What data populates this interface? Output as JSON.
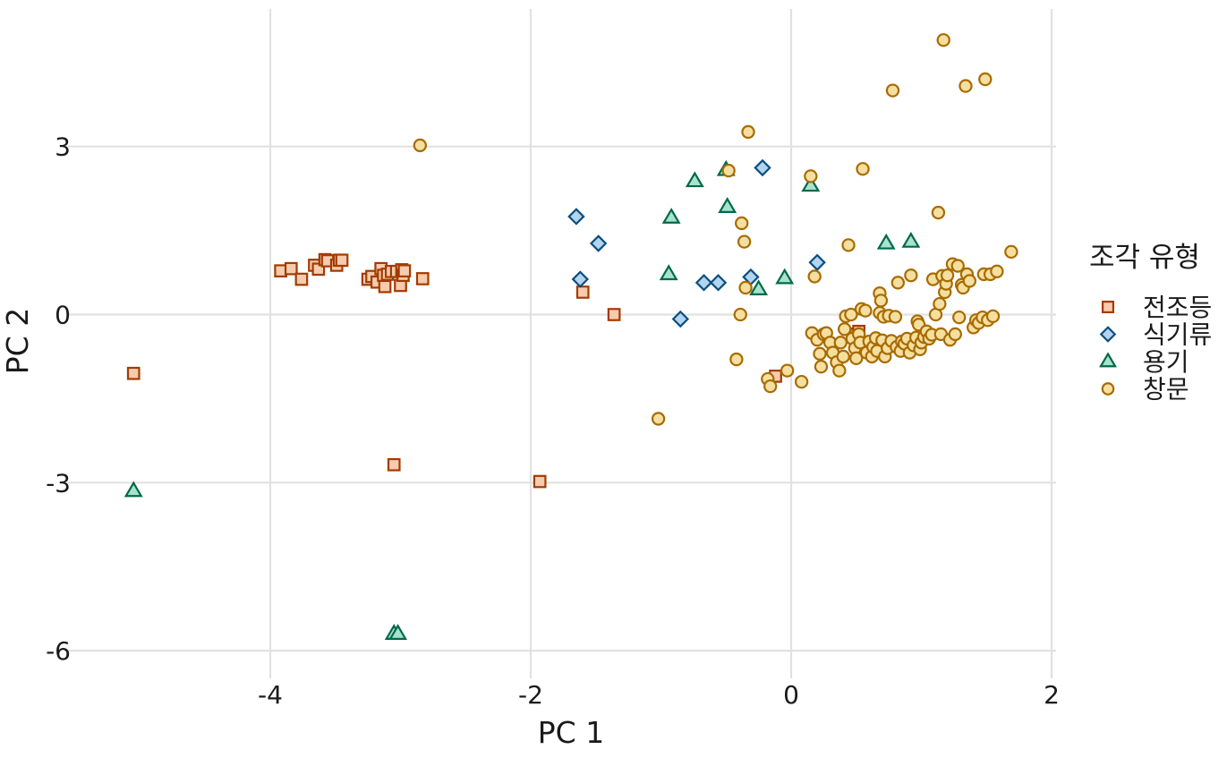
{
  "chart_data": {
    "type": "scatter",
    "title": "",
    "xlabel": "PC 1",
    "ylabel": "PC 2",
    "xlim": [
      -5.3,
      2.05
    ],
    "ylim": [
      -6.5,
      5.45
    ],
    "x_ticks": [
      -4,
      -2,
      0,
      2
    ],
    "y_ticks": [
      -6,
      -3,
      0,
      3
    ],
    "grid": true,
    "legend": {
      "title": "조각 유형",
      "placement": "right"
    },
    "series": [
      {
        "name": "전조등",
        "marker": "square",
        "stroke": "#A33B00",
        "fill": "#F6CBAF",
        "points": [
          [
            -5.05,
            -1.05
          ],
          [
            -3.92,
            0.78
          ],
          [
            -3.84,
            0.82
          ],
          [
            -3.76,
            0.63
          ],
          [
            -3.66,
            0.88
          ],
          [
            -3.63,
            0.81
          ],
          [
            -3.58,
            0.98
          ],
          [
            -3.56,
            0.96
          ],
          [
            -3.49,
            0.88
          ],
          [
            -3.47,
            0.97
          ],
          [
            -3.45,
            0.97
          ],
          [
            -3.25,
            0.63
          ],
          [
            -3.22,
            0.68
          ],
          [
            -3.18,
            0.58
          ],
          [
            -3.15,
            0.82
          ],
          [
            -3.13,
            0.7
          ],
          [
            -3.12,
            0.5
          ],
          [
            -3.1,
            0.72
          ],
          [
            -3.07,
            0.77
          ],
          [
            -3.03,
            0.77
          ],
          [
            -3.0,
            0.52
          ],
          [
            -2.99,
            0.8
          ],
          [
            -2.98,
            0.7
          ],
          [
            -2.97,
            0.78
          ],
          [
            -2.83,
            0.64
          ],
          [
            -3.05,
            -2.68
          ],
          [
            -1.93,
            -2.98
          ],
          [
            -1.6,
            0.4
          ],
          [
            -1.36,
            0.0
          ],
          [
            -0.12,
            -1.1
          ],
          [
            0.5,
            -0.35
          ],
          [
            0.52,
            -0.3
          ]
        ]
      },
      {
        "name": "식기류",
        "marker": "diamond",
        "stroke": "#0B4E7E",
        "fill": "#B3D4EE",
        "points": [
          [
            -1.65,
            1.75
          ],
          [
            -1.62,
            0.63
          ],
          [
            -1.48,
            1.27
          ],
          [
            -0.85,
            -0.08
          ],
          [
            -0.67,
            0.57
          ],
          [
            -0.56,
            0.57
          ],
          [
            -0.31,
            0.67
          ],
          [
            -0.22,
            2.62
          ],
          [
            0.2,
            0.93
          ]
        ]
      },
      {
        "name": "용기",
        "marker": "triangle",
        "stroke": "#00694A",
        "fill": "#A8E2CC",
        "points": [
          [
            -5.05,
            -3.15
          ],
          [
            -3.05,
            -5.7
          ],
          [
            -3.02,
            -5.7
          ],
          [
            -0.94,
            0.72
          ],
          [
            -0.92,
            1.73
          ],
          [
            -0.74,
            2.38
          ],
          [
            -0.5,
            2.58
          ],
          [
            -0.49,
            1.92
          ],
          [
            -0.25,
            0.45
          ],
          [
            -0.05,
            0.65
          ],
          [
            0.15,
            2.3
          ],
          [
            0.73,
            1.27
          ],
          [
            0.92,
            1.3
          ]
        ]
      },
      {
        "name": "창문",
        "marker": "circle",
        "stroke": "#A86B00",
        "fill": "#F5DFA0",
        "points": [
          [
            -2.85,
            3.02
          ],
          [
            -1.02,
            -1.86
          ],
          [
            -0.48,
            2.57
          ],
          [
            -0.42,
            -0.8
          ],
          [
            -0.39,
            0.0
          ],
          [
            -0.38,
            1.63
          ],
          [
            -0.36,
            1.3
          ],
          [
            -0.35,
            0.48
          ],
          [
            -0.33,
            3.26
          ],
          [
            -0.18,
            -1.15
          ],
          [
            -0.16,
            -1.28
          ],
          [
            -0.03,
            -1.0
          ],
          [
            0.08,
            -1.2
          ],
          [
            0.15,
            2.47
          ],
          [
            0.16,
            -0.33
          ],
          [
            0.18,
            0.68
          ],
          [
            0.2,
            -0.45
          ],
          [
            0.22,
            -0.7
          ],
          [
            0.23,
            -0.93
          ],
          [
            0.25,
            -0.35
          ],
          [
            0.27,
            -0.33
          ],
          [
            0.3,
            -0.5
          ],
          [
            0.32,
            -0.68
          ],
          [
            0.35,
            -0.85
          ],
          [
            0.37,
            -1.0
          ],
          [
            0.38,
            -0.5
          ],
          [
            0.4,
            -0.75
          ],
          [
            0.41,
            -0.26
          ],
          [
            0.42,
            -0.03
          ],
          [
            0.44,
            1.24
          ],
          [
            0.46,
            0.0
          ],
          [
            0.47,
            -0.43
          ],
          [
            0.49,
            -0.6
          ],
          [
            0.5,
            -0.78
          ],
          [
            0.52,
            -0.35
          ],
          [
            0.53,
            -0.5
          ],
          [
            0.54,
            0.1
          ],
          [
            0.55,
            2.6
          ],
          [
            0.57,
            0.07
          ],
          [
            0.58,
            -0.68
          ],
          [
            0.6,
            -0.48
          ],
          [
            0.62,
            -0.75
          ],
          [
            0.63,
            -0.58
          ],
          [
            0.65,
            -0.42
          ],
          [
            0.66,
            -0.65
          ],
          [
            0.68,
            0.03
          ],
          [
            0.68,
            0.38
          ],
          [
            0.69,
            0.25
          ],
          [
            0.7,
            -0.46
          ],
          [
            0.71,
            -0.04
          ],
          [
            0.72,
            -0.75
          ],
          [
            0.74,
            -0.6
          ],
          [
            0.75,
            -0.02
          ],
          [
            0.77,
            -0.47
          ],
          [
            0.78,
            4.0
          ],
          [
            0.8,
            -0.04
          ],
          [
            0.81,
            -0.58
          ],
          [
            0.82,
            0.57
          ],
          [
            0.84,
            -0.65
          ],
          [
            0.85,
            -0.48
          ],
          [
            0.87,
            -0.52
          ],
          [
            0.89,
            -0.43
          ],
          [
            0.91,
            -0.68
          ],
          [
            0.92,
            0.7
          ],
          [
            0.94,
            -0.55
          ],
          [
            0.96,
            -0.41
          ],
          [
            0.97,
            -0.12
          ],
          [
            0.98,
            -0.18
          ],
          [
            0.99,
            -0.62
          ],
          [
            1.0,
            -0.5
          ],
          [
            1.02,
            -0.4
          ],
          [
            1.04,
            -0.3
          ],
          [
            1.06,
            -0.43
          ],
          [
            1.08,
            -0.36
          ],
          [
            1.09,
            0.63
          ],
          [
            1.11,
            0.0
          ],
          [
            1.13,
            1.82
          ],
          [
            1.14,
            0.19
          ],
          [
            1.15,
            -0.35
          ],
          [
            1.16,
            0.69
          ],
          [
            1.17,
            4.9
          ],
          [
            1.18,
            0.4
          ],
          [
            1.19,
            0.55
          ],
          [
            1.2,
            0.7
          ],
          [
            1.22,
            -0.45
          ],
          [
            1.24,
            0.9
          ],
          [
            1.26,
            -0.35
          ],
          [
            1.28,
            0.87
          ],
          [
            1.29,
            -0.05
          ],
          [
            1.31,
            0.53
          ],
          [
            1.32,
            0.48
          ],
          [
            1.34,
            4.08
          ],
          [
            1.35,
            0.72
          ],
          [
            1.37,
            0.6
          ],
          [
            1.4,
            -0.23
          ],
          [
            1.42,
            -0.1
          ],
          [
            1.44,
            -0.15
          ],
          [
            1.47,
            -0.05
          ],
          [
            1.48,
            0.72
          ],
          [
            1.49,
            4.2
          ],
          [
            1.51,
            -0.1
          ],
          [
            1.53,
            0.72
          ],
          [
            1.55,
            -0.03
          ],
          [
            1.58,
            0.77
          ],
          [
            1.69,
            1.12
          ]
        ]
      }
    ]
  }
}
